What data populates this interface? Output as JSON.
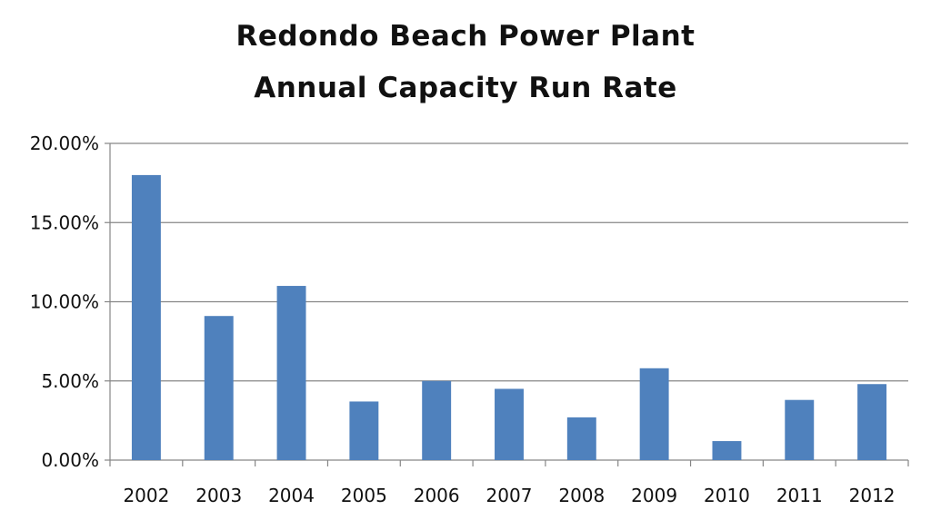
{
  "chart_data": {
    "type": "bar",
    "title": "Redondo Beach Power Plant",
    "subtitle": "Annual Capacity Run Rate",
    "xlabel": "",
    "ylabel": "",
    "categories": [
      "2002",
      "2003",
      "2004",
      "2005",
      "2006",
      "2007",
      "2008",
      "2009",
      "2010",
      "2011",
      "2012"
    ],
    "series": [
      {
        "values": [
          0.18,
          0.091,
          0.11,
          0.037,
          0.05,
          0.045,
          0.027,
          0.058,
          0.012,
          0.038,
          0.048
        ]
      }
    ],
    "ylim": [
      0,
      0.2
    ],
    "y_ticks": [
      0,
      0.05,
      0.1,
      0.15,
      0.2
    ],
    "y_tick_labels": [
      "0.00%",
      "5.00%",
      "10.00%",
      "15.00%",
      "20.00%"
    ],
    "grid": true,
    "legend": "none",
    "bar_color": "#4F81BD",
    "grid_color": "#868686"
  }
}
